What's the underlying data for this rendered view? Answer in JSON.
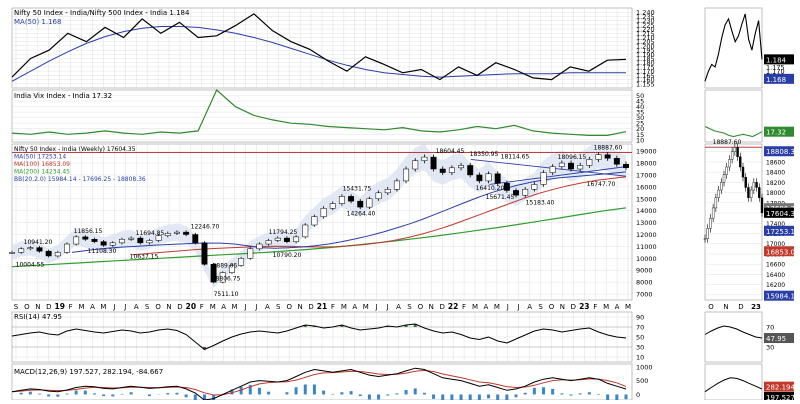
{
  "colors": {
    "background": "#ffffff",
    "grid": "#dcdcdc",
    "price": "#000000",
    "ma50": "#2a3ea8",
    "ma100": "#c0392b",
    "ma200": "#2f9e2f",
    "bb_band": "#d6dff0",
    "vix": "#2f8a2f",
    "rsi_fill_high": "#2f7d2f",
    "rsi_fill_low": "#8b3a3a",
    "macd_line": "#000000",
    "macd_signal": "#c0392b",
    "macd_hist": "#3a86c8",
    "red_line": "#b22222",
    "trend_line": "#2a3ea8",
    "label_box_price": "#000000",
    "label_box_ma": "#2a3ea8"
  },
  "chart_data": [
    {
      "type": "line",
      "panel": "relative_strength",
      "legend": [
        "Nifty 50 Index - India/Nifty 500 Index - India 1.184",
        "MA(50) 1.168"
      ],
      "y_ticks": [
        "1.240",
        "1.235",
        "1.230",
        "1.225",
        "1.220",
        "1.215",
        "1.210",
        "1.205",
        "1.200",
        "1.195",
        "1.190",
        "1.185",
        "1.180",
        "1.175",
        "1.170",
        "1.165",
        "1.160",
        "1.155"
      ],
      "ylim": [
        1.15,
        1.245
      ],
      "series": [
        {
          "role": "ratio",
          "values": [
            1.163,
            1.185,
            1.195,
            1.215,
            1.205,
            1.222,
            1.21,
            1.232,
            1.215,
            1.228,
            1.21,
            1.212,
            1.224,
            1.238,
            1.218,
            1.205,
            1.196,
            1.182,
            1.17,
            1.187,
            1.178,
            1.168,
            1.172,
            1.16,
            1.175,
            1.165,
            1.18,
            1.172,
            1.162,
            1.16,
            1.175,
            1.17,
            1.183,
            1.184
          ]
        },
        {
          "role": "ma",
          "values": [
            1.158,
            1.17,
            1.182,
            1.193,
            1.203,
            1.211,
            1.217,
            1.221,
            1.223,
            1.223,
            1.222,
            1.219,
            1.215,
            1.21,
            1.204,
            1.197,
            1.19,
            1.183,
            1.177,
            1.172,
            1.168,
            1.166,
            1.164,
            1.163,
            1.164,
            1.165,
            1.166,
            1.167,
            1.167,
            1.167,
            1.168,
            1.168,
            1.168,
            1.168
          ]
        }
      ],
      "side_values": [
        "1.184",
        "1.168"
      ]
    },
    {
      "type": "line",
      "panel": "vix",
      "legend": [
        "India Vix Index - India 17.32"
      ],
      "y_ticks": [
        "50",
        "45",
        "40",
        "35",
        "30",
        "25",
        "20",
        "15",
        "10"
      ],
      "ylim": [
        8,
        55
      ],
      "values": [
        16,
        15,
        17,
        15,
        16,
        18,
        16,
        15,
        17,
        16,
        18,
        55,
        40,
        32,
        28,
        25,
        24,
        22,
        21,
        20,
        19,
        21,
        18,
        17,
        19,
        22,
        20,
        23,
        18,
        16,
        15,
        14,
        14,
        17.32
      ],
      "side_values": [
        "17.32"
      ]
    },
    {
      "type": "line",
      "panel": "price",
      "legend": [
        "Nifty 50 Index - India (Weekly) 17604.35",
        "MA(50) 17253.14",
        "MA(100) 16853.09",
        "MA(200) 14234.45",
        "BB(20,2.0) 15984.14 - 17696.25 - 18808.36"
      ],
      "y_ticks": [
        "19000",
        "18000",
        "17000",
        "16000",
        "15000",
        "14000",
        "13000",
        "12000",
        "11000",
        "10000",
        "9000",
        "8000",
        "7000"
      ],
      "ylim": [
        6500,
        19600
      ],
      "x_ticks": [
        "S",
        "O",
        "N",
        "D",
        "19",
        "F",
        "M",
        "A",
        "M",
        "J",
        "J",
        "A",
        "S",
        "O",
        "N",
        "D",
        "20",
        "F",
        "M",
        "A",
        "M",
        "J",
        "J",
        "A",
        "S",
        "O",
        "N",
        "D",
        "21",
        "F",
        "M",
        "A",
        "M",
        "J",
        "J",
        "A",
        "S",
        "O",
        "N",
        "D",
        "22",
        "F",
        "M",
        "A",
        "M",
        "J",
        "J",
        "A",
        "S",
        "O",
        "N",
        "D",
        "23",
        "F",
        "M",
        "A",
        "M"
      ],
      "annotations": [
        "10941.20",
        "10004.55",
        "11856.15",
        "11108.30",
        "10637.15",
        "11694.85",
        "12246.70",
        "9889.05",
        "8806.75",
        "7511.10",
        "11794.25",
        "10790.20",
        "15431.75",
        "14264.40",
        "18604.45",
        "18350.95",
        "18114.65",
        "16410.20",
        "15671.45",
        "15183.40",
        "18096.15",
        "18887.60",
        "16747.70"
      ],
      "price": [
        10500,
        10800,
        10900,
        10600,
        10200,
        10500,
        11200,
        11800,
        11600,
        11400,
        11100,
        11300,
        11600,
        11700,
        11300,
        11500,
        11900,
        12100,
        12200,
        12000,
        11300,
        9500,
        8000,
        8800,
        9400,
        10000,
        10800,
        11200,
        11500,
        11700,
        11400,
        11800,
        12800,
        13500,
        14200,
        14600,
        15200,
        14800,
        14300,
        15000,
        15500,
        15800,
        16500,
        17500,
        18200,
        18500,
        17500,
        17200,
        17600,
        17800,
        17000,
        16500,
        17100,
        16300,
        15700,
        15300,
        15800,
        16200,
        17200,
        17700,
        18000,
        17500,
        17800,
        18300,
        18700,
        18400,
        17900,
        17604
      ],
      "ma50": [
        10500,
        10650,
        10780,
        10880,
        10960,
        11030,
        11090,
        11150,
        11200,
        11250,
        11280,
        11280,
        11200,
        11050,
        10900,
        10850,
        10880,
        10950,
        11050,
        11200,
        11400,
        11650,
        11900,
        12200,
        12550,
        12900,
        13300,
        13750,
        14200,
        14650,
        15100,
        15500,
        15850,
        16150,
        16400,
        16600,
        16750,
        16850,
        16950,
        17050,
        17150,
        17253
      ],
      "ma100": [
        10300,
        10400,
        10500,
        10600,
        10700,
        10780,
        10850,
        10900,
        10950,
        11000,
        11020,
        11000,
        10960,
        10950,
        10980,
        11050,
        11150,
        11300,
        11500,
        11750,
        12050,
        12400,
        12800,
        13250,
        13700,
        14150,
        14600,
        15050,
        15450,
        15800,
        16100,
        16350,
        16550,
        16700,
        16853
      ],
      "ma200": [
        9300,
        9400,
        9500,
        9600,
        9700,
        9800,
        9900,
        10000,
        10100,
        10200,
        10300,
        10400,
        10500,
        10620,
        10750,
        10900,
        11070,
        11250,
        11450,
        11650,
        11870,
        12100,
        12350,
        12600,
        12870,
        13150,
        13430,
        13720,
        14000,
        14234
      ],
      "hline": 18887.6,
      "side_values": [
        "18808.36",
        "17696.25",
        "17604.35",
        "17253.14",
        "16853.09",
        "15984.14"
      ]
    },
    {
      "type": "line",
      "panel": "rsi",
      "legend": [
        "RSI(14) 47.95"
      ],
      "y_ticks": [
        "90",
        "70",
        "50",
        "30",
        "10"
      ],
      "ylim": [
        0,
        100
      ],
      "values": [
        52,
        55,
        58,
        60,
        56,
        54,
        62,
        66,
        63,
        60,
        58,
        61,
        64,
        62,
        58,
        60,
        64,
        66,
        63,
        55,
        40,
        25,
        33,
        42,
        50,
        56,
        60,
        62,
        60,
        58,
        62,
        68,
        74,
        72,
        68,
        70,
        74,
        68,
        64,
        66,
        68,
        72,
        70,
        74,
        76,
        68,
        62,
        58,
        60,
        55,
        48,
        45,
        50,
        42,
        38,
        46,
        54,
        62,
        66,
        64,
        60,
        63,
        66,
        68,
        60,
        54,
        50,
        47.95
      ],
      "side_values": [
        "47.95"
      ]
    },
    {
      "type": "line",
      "panel": "macd",
      "legend": [
        "MACD(12,26,9) 197.527, 282.194, -84.667"
      ],
      "y_ticks": [
        "1000",
        "500",
        "0"
      ],
      "ylim": [
        -200,
        1100
      ],
      "macd": [
        100,
        150,
        200,
        180,
        120,
        100,
        160,
        250,
        300,
        280,
        220,
        200,
        250,
        300,
        260,
        220,
        240,
        280,
        300,
        200,
        50,
        -200,
        -150,
        0,
        150,
        300,
        450,
        500,
        480,
        450,
        500,
        650,
        800,
        900,
        850,
        800,
        850,
        900,
        800,
        700,
        650,
        700,
        750,
        850,
        950,
        900,
        750,
        600,
        550,
        500,
        400,
        300,
        350,
        250,
        150,
        200,
        300,
        450,
        550,
        600,
        550,
        500,
        550,
        600,
        550,
        400,
        300,
        197.527
      ],
      "signal": [
        100,
        120,
        150,
        165,
        155,
        140,
        145,
        180,
        230,
        260,
        250,
        235,
        240,
        260,
        260,
        250,
        245,
        255,
        270,
        250,
        180,
        60,
        -20,
        -10,
        60,
        160,
        280,
        380,
        430,
        450,
        460,
        520,
        620,
        720,
        780,
        790,
        810,
        840,
        830,
        790,
        740,
        720,
        730,
        770,
        840,
        870,
        830,
        740,
        670,
        610,
        530,
        450,
        420,
        360,
        280,
        250,
        270,
        330,
        420,
        500,
        530,
        520,
        530,
        560,
        560,
        500,
        420,
        282.194
      ],
      "side_values": [
        "282.194",
        "197.527"
      ]
    },
    {
      "type": "line",
      "panel": "daily_inset",
      "x_ticks": [
        "O",
        "N",
        "D",
        "23"
      ],
      "annotations": [
        "18887.60"
      ],
      "y_ticks": [
        "18800",
        "18600",
        "18400",
        "18200",
        "18000",
        "17800",
        "17600",
        "17400",
        "17200",
        "17000",
        "16800",
        "16600",
        "16400",
        "16200",
        "16000"
      ],
      "ylim": [
        15900,
        18950
      ],
      "price": [
        17100,
        17300,
        17500,
        17700,
        17900,
        18050,
        18200,
        18350,
        18500,
        18650,
        18800,
        18887,
        18700,
        18500,
        18300,
        18100,
        17900,
        18050,
        18200,
        18100,
        17900,
        17604
      ],
      "ratio": [
        1.158,
        1.17,
        1.178,
        1.175,
        1.19,
        1.21,
        1.225,
        1.232,
        1.218,
        1.205,
        1.212,
        1.226,
        1.238,
        1.208,
        1.195,
        1.215,
        1.23,
        1.184
      ],
      "vix": [
        22,
        20,
        18,
        17,
        16,
        14,
        13,
        14,
        15,
        14,
        13,
        15,
        17.32
      ],
      "rsi": [
        55,
        62,
        68,
        72,
        70,
        66,
        60,
        55,
        50,
        47.95
      ],
      "macd": [
        100,
        250,
        400,
        520,
        600,
        580,
        500,
        400,
        300,
        197.527
      ]
    }
  ]
}
